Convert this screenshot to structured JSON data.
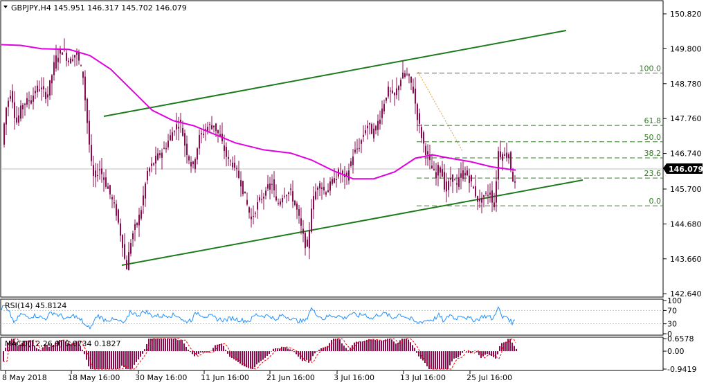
{
  "chart_data": [
    {
      "type": "candlestick",
      "title": "GBPJPY,H4  145.951 146.317 145.702 146.079",
      "y_ticks": [
        "150.820",
        "149.800",
        "148.780",
        "147.760",
        "146.740",
        "145.700",
        "144.680",
        "143.660",
        "142.640"
      ],
      "ylim": [
        142.2,
        151.1
      ],
      "x_ticks": [
        "8 May 2018",
        "18 May 16:00",
        "30 May 16:00",
        "11 Jun 16:00",
        "21 Jun 16:00",
        "3 Jul 16:00",
        "13 Jul 16:00",
        "25 Jul 16:00"
      ],
      "current_price": "146.079",
      "fibonacci_levels": [
        {
          "label": "100.0",
          "value": 149.09
        },
        {
          "label": "61.8",
          "value": 147.56
        },
        {
          "label": "50.0",
          "value": 147.08
        },
        {
          "label": "38.2",
          "value": 146.61
        },
        {
          "label": "23.6",
          "value": 146.02
        },
        {
          "label": "0.0",
          "value": 145.21
        }
      ],
      "moving_average_color": "#e000e0",
      "trendline_color": "#1d7a1d",
      "candle_color": "#8b0a50",
      "grid": false
    },
    {
      "type": "line",
      "title": "RSI(14) 45.8124",
      "y_ticks": [
        "100",
        "70",
        "30",
        "0"
      ],
      "ylim": [
        0,
        100
      ],
      "color": "#1e90ff"
    },
    {
      "type": "histogram",
      "title": "MACD(12,26,9) 0.0734 0.1827",
      "y_ticks": [
        "0.6578",
        "0.00",
        "-0.9419"
      ],
      "ylim": [
        -0.9419,
        0.6578
      ],
      "color": "#8b0a50",
      "signal_color": "#ff0000"
    }
  ]
}
